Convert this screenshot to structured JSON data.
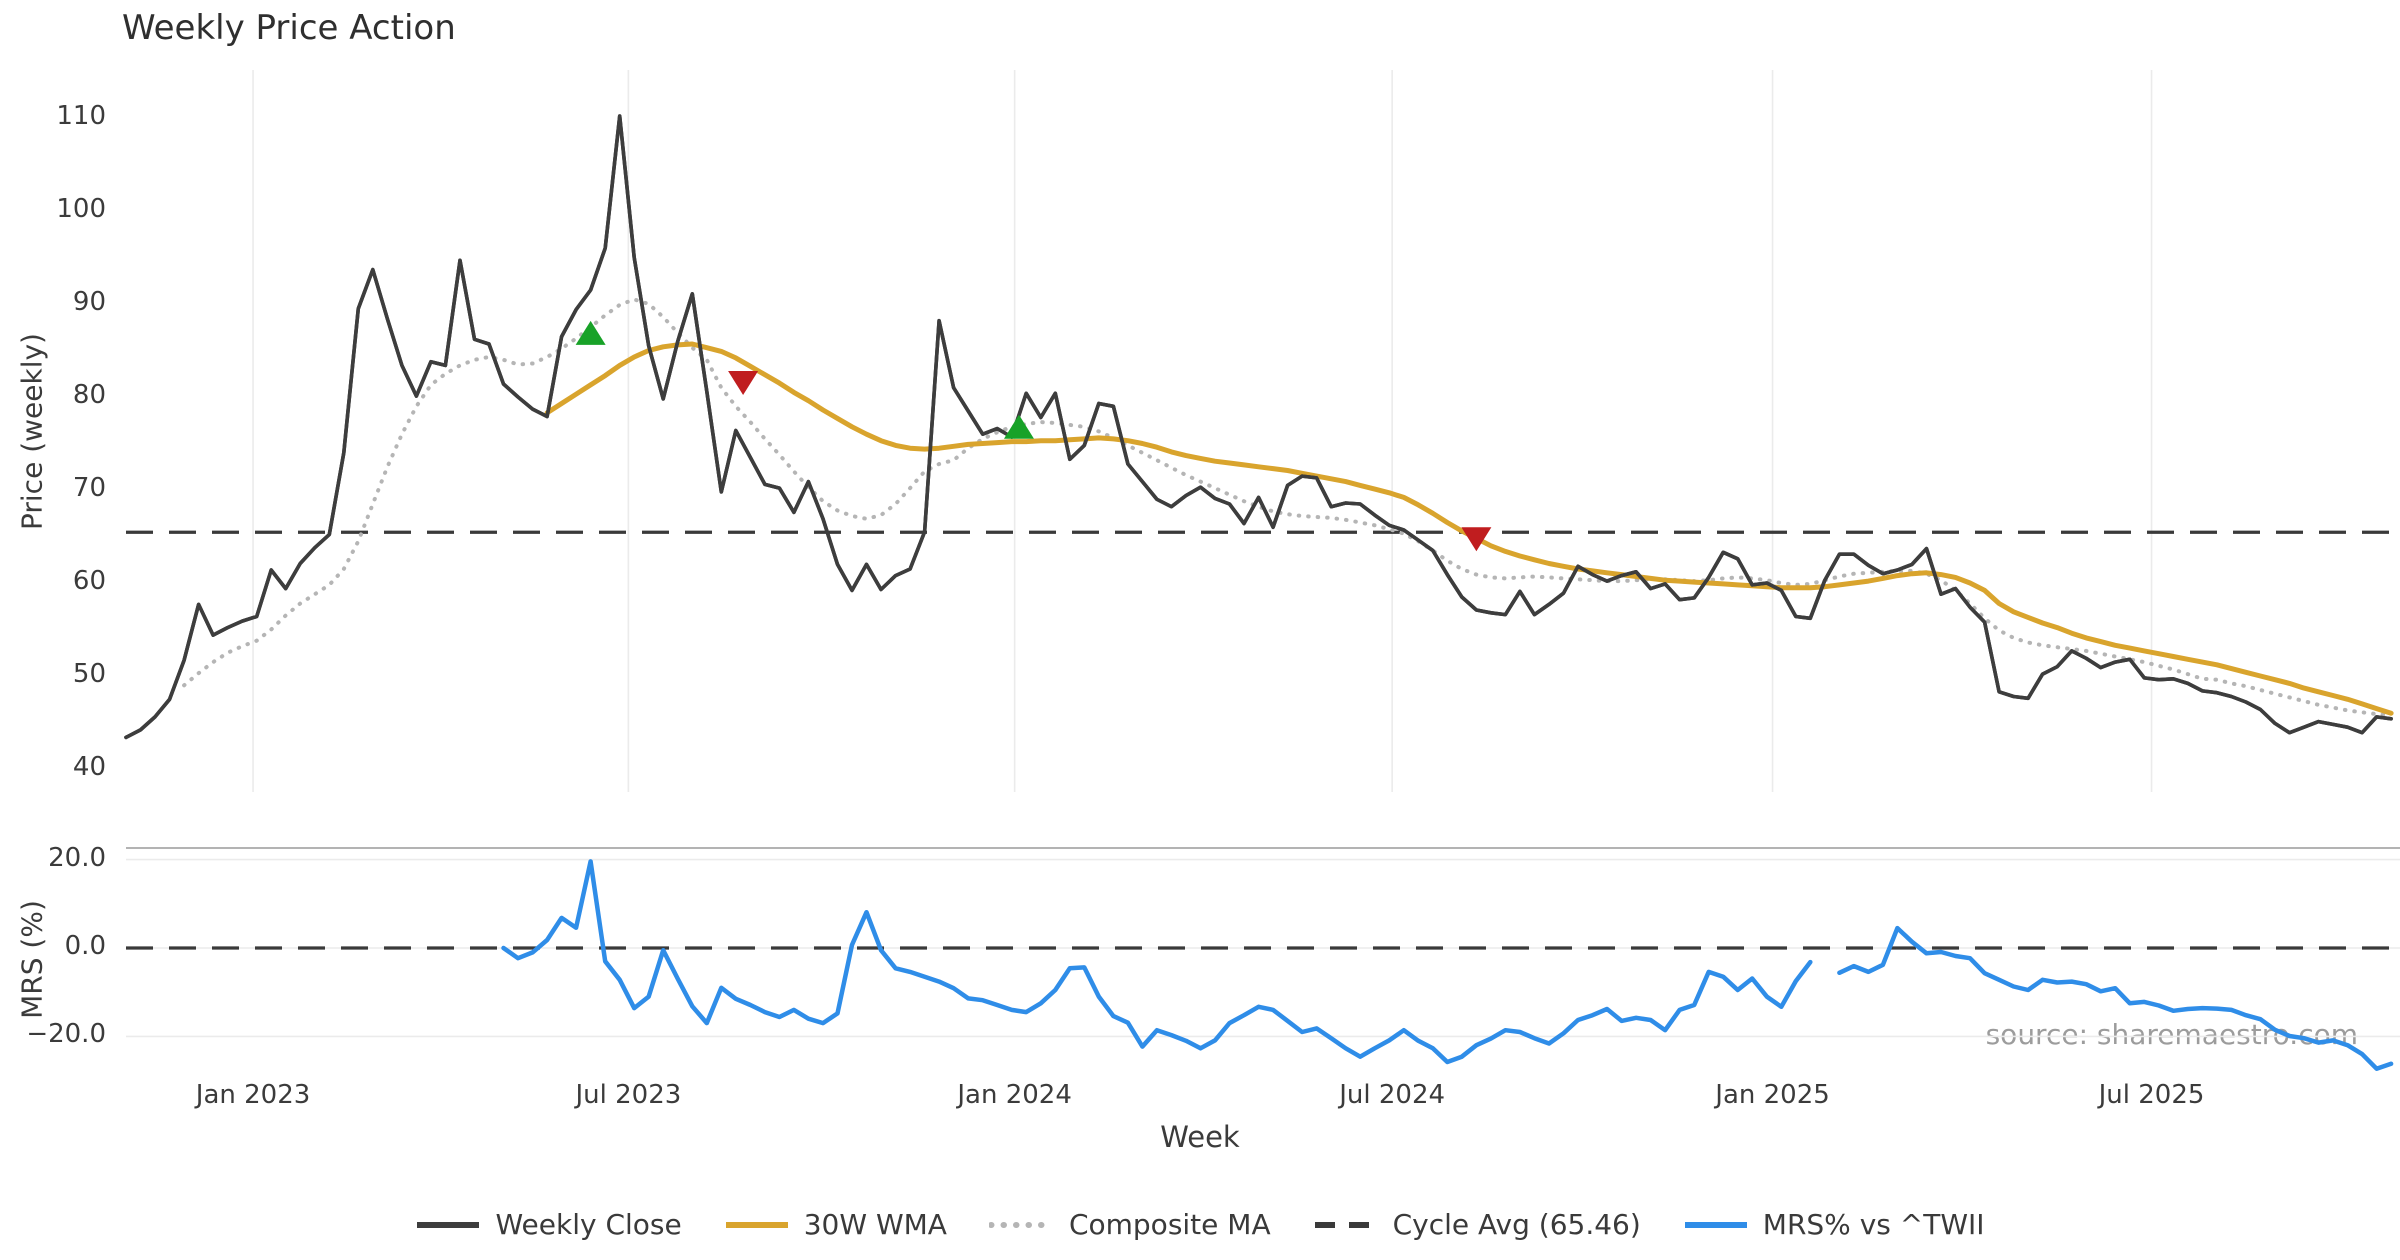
{
  "title": "Weekly Price Action",
  "watermark": "source: sharemaestro.com",
  "colors": {
    "price_line": "#3d3d3d",
    "wma_line": "#d9a42d",
    "composite_line": "#b5b5b5",
    "cycle_avg_line": "#3a3a3a",
    "mrs_line": "#2f8de8",
    "marker_up": "#18a228",
    "marker_down": "#c01d1f",
    "gridline": "#ebebeb",
    "panel_separator": "#b3b3b3",
    "tick_text": "#3b3b3b",
    "watermark_text": "#9c9c9c"
  },
  "chart_data": {
    "type": "line",
    "xlabel": "Week",
    "x_axis": {
      "tick_weeks": [
        8.75,
        34.6,
        61.2,
        87.2,
        113.4,
        139.5
      ],
      "tick_labels": [
        "Jan 2023",
        "Jul 2023",
        "Jan 2024",
        "Jul 2024",
        "Jan 2025",
        "Jul 2025"
      ]
    },
    "legend": [
      {
        "label": "Weekly Close",
        "swatch": "solid",
        "color": "#3d3d3d"
      },
      {
        "label": "30W WMA",
        "swatch": "solid",
        "color": "#d9a42d"
      },
      {
        "label": "Composite MA",
        "swatch": "dotted",
        "color": "#b5b5b5"
      },
      {
        "label": "Cycle Avg (65.46)",
        "swatch": "dashed",
        "color": "#3a3a3a"
      },
      {
        "label": "MRS% vs ^TWII",
        "swatch": "solid",
        "color": "#2f8de8"
      }
    ],
    "panels": [
      {
        "name": "price",
        "ylabel": "Price (weekly)",
        "yticks": [
          40,
          50,
          60,
          70,
          80,
          90,
          100,
          110
        ],
        "ylim": [
          37.6,
          115.2
        ],
        "grid": "vertical",
        "cycle_avg": 65.46,
        "series": [
          {
            "name": "Weekly Close",
            "style": "solid",
            "color": "#3d3d3d",
            "width": 3.6,
            "start_week": 0,
            "values": [
              43.4,
              44.2,
              45.6,
              47.5,
              51.7,
              57.7,
              54.4,
              55.2,
              55.9,
              56.4,
              61.4,
              59.4,
              62.1,
              63.8,
              65.2,
              74.0,
              89.5,
              93.7,
              88.4,
              83.4,
              80.1,
              83.8,
              83.4,
              94.7,
              86.2,
              85.7,
              81.4,
              80.0,
              78.7,
              77.9,
              86.5,
              89.4,
              91.5,
              96.0,
              110.2,
              95.0,
              85.5,
              79.8,
              86.0,
              91.1,
              80.6,
              69.8,
              76.4,
              73.5,
              70.6,
              70.2,
              67.6,
              70.9,
              66.9,
              62.0,
              59.2,
              62.0,
              59.3,
              60.8,
              61.5,
              65.5,
              88.2,
              81.0,
              78.5,
              76.0,
              76.6,
              75.7,
              80.4,
              77.8,
              80.4,
              73.3,
              74.8,
              79.3,
              79.0,
              72.8,
              70.9,
              69.0,
              68.2,
              69.4,
              70.3,
              69.1,
              68.5,
              66.4,
              69.2,
              66.0,
              70.5,
              71.5,
              71.3,
              68.2,
              68.6,
              68.5,
              67.3,
              66.2,
              65.7,
              64.6,
              63.5,
              60.9,
              58.5,
              57.1,
              56.8,
              56.6,
              59.1,
              56.6,
              57.7,
              58.9,
              61.8,
              60.9,
              60.2,
              60.8,
              61.2,
              59.4,
              59.9,
              58.2,
              58.4,
              60.6,
              63.3,
              62.6,
              59.8,
              60.0,
              59.2,
              56.4,
              56.2,
              60.3,
              63.1,
              63.1,
              61.9,
              61.0,
              61.4,
              62.0,
              63.7,
              58.8,
              59.4,
              57.4,
              55.8,
              48.3,
              47.8,
              47.6,
              50.2,
              51.0,
              52.7,
              51.9,
              50.9,
              51.5,
              51.8,
              49.8,
              49.6,
              49.7,
              49.2,
              48.4,
              48.2,
              47.8,
              47.2,
              46.4,
              44.9,
              43.9,
              44.5,
              45.1,
              44.8,
              44.5,
              43.9,
              45.6,
              45.4
            ]
          },
          {
            "name": "30W WMA",
            "style": "solid",
            "color": "#d9a42d",
            "width": 5,
            "start_week": 29,
            "values": [
              78.3,
              79.3,
              80.3,
              81.3,
              82.3,
              83.4,
              84.3,
              85.0,
              85.4,
              85.6,
              85.7,
              85.3,
              84.9,
              84.2,
              83.3,
              82.4,
              81.5,
              80.5,
              79.6,
              78.6,
              77.7,
              76.8,
              76.0,
              75.3,
              74.8,
              74.5,
              74.4,
              74.5,
              74.7,
              74.9,
              75.0,
              75.1,
              75.2,
              75.2,
              75.3,
              75.3,
              75.4,
              75.5,
              75.6,
              75.5,
              75.3,
              75.0,
              74.6,
              74.1,
              73.7,
              73.4,
              73.1,
              72.9,
              72.7,
              72.5,
              72.3,
              72.1,
              71.8,
              71.5,
              71.2,
              70.9,
              70.5,
              70.1,
              69.7,
              69.2,
              68.4,
              67.5,
              66.5,
              65.6,
              64.8,
              64.0,
              63.4,
              62.9,
              62.5,
              62.1,
              61.8,
              61.5,
              61.3,
              61.1,
              60.9,
              60.7,
              60.5,
              60.3,
              60.2,
              60.1,
              60.0,
              59.9,
              59.8,
              59.7,
              59.6,
              59.5,
              59.5,
              59.5,
              59.6,
              59.8,
              60.0,
              60.2,
              60.5,
              60.8,
              61.0,
              61.1,
              60.9,
              60.6,
              60.0,
              59.2,
              57.8,
              56.9,
              56.3,
              55.7,
              55.2,
              54.6,
              54.1,
              53.7,
              53.3,
              53.0,
              52.7,
              52.4,
              52.1,
              51.8,
              51.5,
              51.2,
              50.8,
              50.4,
              50.0,
              49.6,
              49.2,
              48.7,
              48.3,
              47.9,
              47.5,
              47.0,
              46.5,
              46.0
            ]
          },
          {
            "name": "Composite MA",
            "style": "dotted",
            "color": "#b5b5b5",
            "width": 4,
            "start_week": 4,
            "values": [
              49.0,
              50.3,
              51.5,
              52.5,
              53.2,
              53.8,
              55.0,
              56.5,
              57.8,
              58.8,
              59.8,
              61.5,
              64.5,
              68.5,
              72.5,
              76.0,
              79.0,
              81.3,
              82.5,
              83.4,
              84.0,
              84.3,
              84.0,
              83.5,
              83.6,
              84.3,
              85.2,
              86.3,
              87.5,
              88.8,
              89.9,
              90.5,
              90.0,
              88.6,
              86.9,
              85.3,
              84.0,
              81.0,
              79.0,
              77.3,
              75.5,
              73.8,
              72.0,
              70.3,
              68.8,
              67.8,
              67.2,
              66.9,
              67.3,
              68.5,
              70.2,
              72.0,
              72.8,
              73.2,
              74.5,
              75.5,
              76.2,
              76.8,
              77.1,
              77.3,
              77.2,
              77.0,
              76.8,
              76.3,
              75.6,
              74.8,
              74.0,
              73.2,
              72.4,
              71.6,
              70.9,
              70.2,
              69.5,
              68.8,
              68.2,
              67.7,
              67.4,
              67.2,
              67.1,
              67.0,
              66.8,
              66.5,
              66.2,
              65.8,
              65.3,
              64.5,
              63.5,
              62.4,
              61.5,
              60.9,
              60.6,
              60.5,
              60.6,
              60.7,
              60.6,
              60.5,
              60.4,
              60.3,
              60.2,
              60.2,
              60.3,
              60.4,
              60.4,
              60.3,
              60.2,
              60.3,
              60.5,
              60.6,
              60.5,
              60.3,
              60.0,
              59.8,
              59.9,
              60.3,
              60.7,
              61.0,
              61.1,
              61.2,
              61.3,
              61.3,
              61.0,
              60.3,
              59.2,
              57.8,
              56.2,
              54.9,
              54.1,
              53.6,
              53.3,
              53.1,
              52.9,
              52.7,
              52.4,
              52.1,
              51.8,
              51.5,
              51.1,
              50.7,
              50.2,
              49.7,
              49.6,
              49.2,
              48.9,
              48.5,
              48.1,
              47.7,
              47.3,
              46.9,
              46.6,
              46.3,
              46.1,
              45.9,
              45.8
            ]
          }
        ],
        "markers": [
          {
            "week": 32,
            "value": 86.9,
            "type": "up"
          },
          {
            "week": 42.5,
            "value": 81.5,
            "type": "down"
          },
          {
            "week": 61.5,
            "value": 76.8,
            "type": "up"
          },
          {
            "week": 93,
            "value": 64.7,
            "type": "down"
          }
        ]
      },
      {
        "name": "mrs",
        "ylabel": "MRS (%)",
        "yticks": [
          20.0,
          0.0,
          -20.0
        ],
        "ytick_labels": [
          "20.0",
          "0.0",
          "−20.0"
        ],
        "ylim": [
          -28.5,
          22.9
        ],
        "grid": "horizontal",
        "zero_line": 0,
        "series": [
          {
            "name": "MRS% vs ^TWII",
            "style": "solid",
            "color": "#2f8de8",
            "width": 4.5,
            "start_week": 26,
            "values": [
              0.0,
              -2.3,
              -1.0,
              1.8,
              6.8,
              4.6,
              19.6,
              -3.0,
              -7.2,
              -13.6,
              -11.0,
              -0.5,
              -7.0,
              -13.2,
              -17.0,
              -9.0,
              -11.5,
              -12.9,
              -14.5,
              -15.6,
              -14.0,
              -16.0,
              -17.0,
              -14.8,
              0.7,
              8.1,
              -0.5,
              -4.6,
              -5.4,
              -6.5,
              -7.6,
              -9.1,
              -11.4,
              -11.8,
              -12.9,
              -14.0,
              -14.5,
              -12.5,
              -9.5,
              -4.6,
              -4.4,
              -11.0,
              -15.4,
              -16.9,
              -22.3,
              -18.6,
              -19.7,
              -21.0,
              -22.7,
              -20.9,
              -17.0,
              -15.2,
              -13.3,
              -14.0,
              -16.5,
              -19.0,
              -18.2,
              -20.4,
              -22.7,
              -24.6,
              -22.7,
              -20.9,
              -18.6,
              -21.0,
              -22.7,
              -25.8,
              -24.6,
              -22.0,
              -20.5,
              -18.6,
              -19.0,
              -20.4,
              -21.6,
              -19.3,
              -16.3,
              -15.2,
              -13.8,
              -16.5,
              -15.8,
              -16.3,
              -18.6,
              -14.0,
              -12.9,
              -5.4,
              -6.5,
              -9.5,
              -6.9,
              -11.0,
              -13.3,
              -7.5,
              -3.2,
              null,
              -5.6,
              -4.1,
              -5.4,
              -3.8,
              4.5,
              1.4,
              -1.2,
              -0.9,
              -1.8,
              -2.3,
              -5.7,
              -7.2,
              -8.7,
              -9.5,
              -7.2,
              -7.8,
              -7.6,
              -8.2,
              -9.8,
              -9.1,
              -12.5,
              -12.2,
              -13.0,
              -14.2,
              -13.8,
              -13.6,
              -13.7,
              -14.0,
              -15.2,
              -16.1,
              -18.5,
              -19.9,
              -20.4,
              -21.4,
              -20.9,
              -22.0,
              -24.0,
              -27.3,
              -26.2
            ]
          }
        ]
      }
    ]
  }
}
